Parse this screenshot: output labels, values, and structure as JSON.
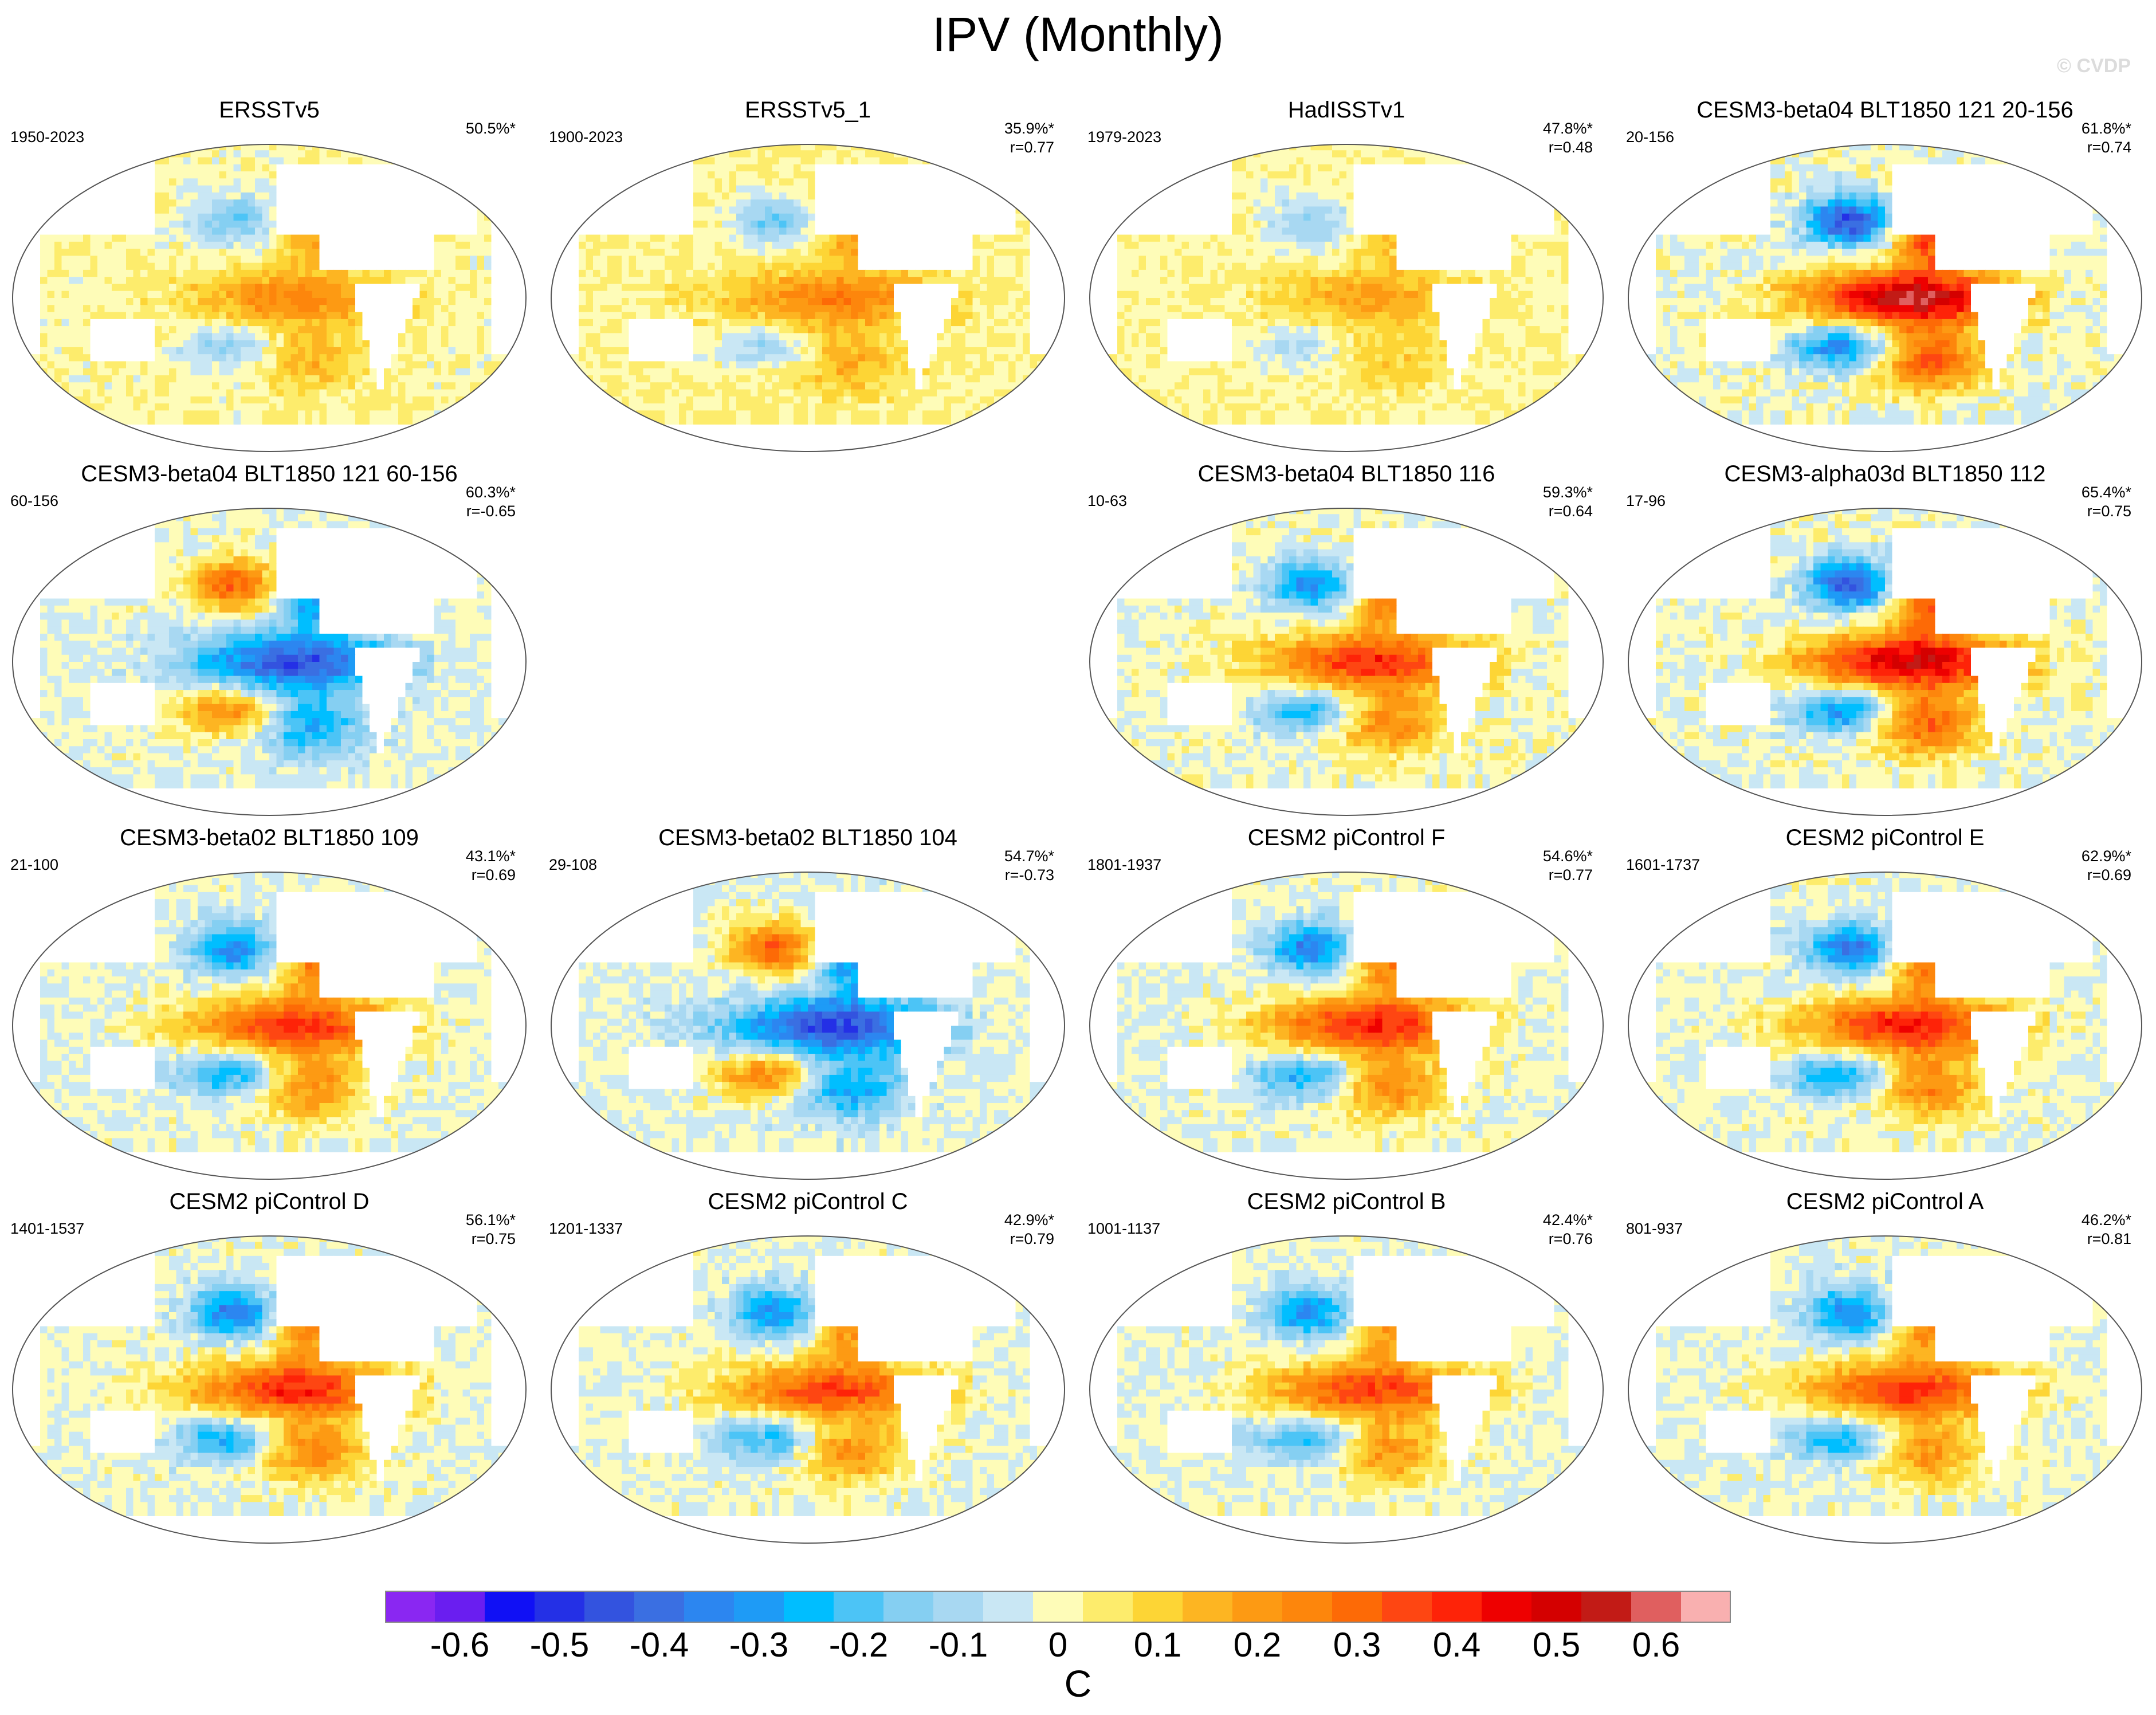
{
  "title": "IPV (Monthly)",
  "watermark": "© CVDP",
  "colorbar": {
    "unit": "C",
    "labels": [
      "-0.6",
      "-0.5",
      "-0.4",
      "-0.3",
      "-0.2",
      "-0.1",
      "0",
      "0.1",
      "0.2",
      "0.3",
      "0.4",
      "0.5",
      "0.6"
    ],
    "colors": [
      "#8a27f2",
      "#6a1ef0",
      "#1010f5",
      "#2430e6",
      "#3353df",
      "#3a6fe2",
      "#2c86f0",
      "#1e9bf6",
      "#00beff",
      "#4cc4f6",
      "#85cff2",
      "#a8d8f2",
      "#c9e7f4",
      "#fefcb8",
      "#fdec6c",
      "#fdd535",
      "#fdb522",
      "#fd9a13",
      "#fd860c",
      "#fd6a06",
      "#fe4612",
      "#fe2308",
      "#ee0000",
      "#d40000",
      "#c21b16",
      "#e05f5f",
      "#f9b0b0"
    ]
  },
  "panels": [
    {
      "id": "p1",
      "title": "ERSSTv5",
      "years": "1950-2023",
      "pct": "50.5%*",
      "r": "",
      "row": 0,
      "col": 0,
      "pattern": {
        "pdo": 0.55,
        "trend": 0.3,
        "shift": 0
      }
    },
    {
      "id": "p2",
      "title": "ERSSTv5_1",
      "years": "1900-2023",
      "pct": "35.9%*",
      "r": "r=0.77",
      "row": 0,
      "col": 1,
      "pattern": {
        "pdo": 0.55,
        "trend": 0.4,
        "shift": 0.1
      }
    },
    {
      "id": "p3",
      "title": "HadISSTv1",
      "years": "1979-2023",
      "pct": "47.8%*",
      "r": "r=0.48",
      "row": 0,
      "col": 2,
      "pattern": {
        "pdo": 0.4,
        "trend": 0.35,
        "shift": -0.1
      }
    },
    {
      "id": "p4",
      "title": "CESM3-beta04 BLT1850 121 20-156",
      "years": "20-156",
      "pct": "61.8%*",
      "r": "r=0.74",
      "row": 0,
      "col": 3,
      "pattern": {
        "pdo": 1.35,
        "trend": 0.1,
        "shift": 0
      }
    },
    {
      "id": "p5",
      "title": "CESM3-beta04 BLT1850 121 60-156",
      "years": "60-156",
      "pct": "60.3%*",
      "r": "r=-0.65",
      "row": 1,
      "col": 0,
      "pattern": {
        "pdo": -1.0,
        "trend": 0.05,
        "shift": 0
      }
    },
    {
      "id": "p6",
      "title": "CESM3-beta04 BLT1850 116",
      "years": "10-63",
      "pct": "59.3%*",
      "r": "r=0.64",
      "row": 1,
      "col": 2,
      "pattern": {
        "pdo": 0.95,
        "trend": 0.1,
        "shift": 0.2
      }
    },
    {
      "id": "p7",
      "title": "CESM3-alpha03d BLT1850 112",
      "years": "17-96",
      "pct": "65.4%*",
      "r": "r=0.75",
      "row": 1,
      "col": 3,
      "pattern": {
        "pdo": 1.25,
        "trend": 0.1,
        "shift": 0
      }
    },
    {
      "id": "p8",
      "title": "CESM3-beta02 BLT1850 109",
      "years": "21-100",
      "pct": "43.1%*",
      "r": "r=0.69",
      "row": 2,
      "col": 0,
      "pattern": {
        "pdo": 0.95,
        "trend": 0.05,
        "shift": 0
      }
    },
    {
      "id": "p9",
      "title": "CESM3-beta02 BLT1850 104",
      "years": "29-108",
      "pct": "54.7%*",
      "r": "r=-0.73",
      "row": 2,
      "col": 1,
      "pattern": {
        "pdo": -1.05,
        "trend": 0.0,
        "shift": 0
      }
    },
    {
      "id": "p10",
      "title": "CESM2 piControl F",
      "years": "1801-1937",
      "pct": "54.6%*",
      "r": "r=0.77",
      "row": 2,
      "col": 2,
      "pattern": {
        "pdo": 1.0,
        "trend": 0.05,
        "shift": 0
      }
    },
    {
      "id": "p11",
      "title": "CESM2 piControl E",
      "years": "1601-1737",
      "pct": "62.9%*",
      "r": "r=0.69",
      "row": 2,
      "col": 3,
      "pattern": {
        "pdo": 1.05,
        "trend": 0.05,
        "shift": 0
      }
    },
    {
      "id": "p12",
      "title": "CESM2 piControl D",
      "years": "1401-1537",
      "pct": "56.1%*",
      "r": "r=0.75",
      "row": 3,
      "col": 0,
      "pattern": {
        "pdo": 1.0,
        "trend": 0.05,
        "shift": 0
      }
    },
    {
      "id": "p13",
      "title": "CESM2 piControl C",
      "years": "1201-1337",
      "pct": "42.9%*",
      "r": "r=0.79",
      "row": 3,
      "col": 1,
      "pattern": {
        "pdo": 0.9,
        "trend": 0.05,
        "shift": 0
      }
    },
    {
      "id": "p14",
      "title": "CESM2 piControl B",
      "years": "1001-1137",
      "pct": "42.4%*",
      "r": "r=0.76",
      "row": 3,
      "col": 2,
      "pattern": {
        "pdo": 0.9,
        "trend": 0.05,
        "shift": 0
      }
    },
    {
      "id": "p15",
      "title": "CESM2 piControl A",
      "years": "801-937",
      "pct": "46.2%*",
      "r": "r=0.81",
      "row": 3,
      "col": 3,
      "pattern": {
        "pdo": 0.95,
        "trend": 0.05,
        "shift": 0
      }
    }
  ]
}
